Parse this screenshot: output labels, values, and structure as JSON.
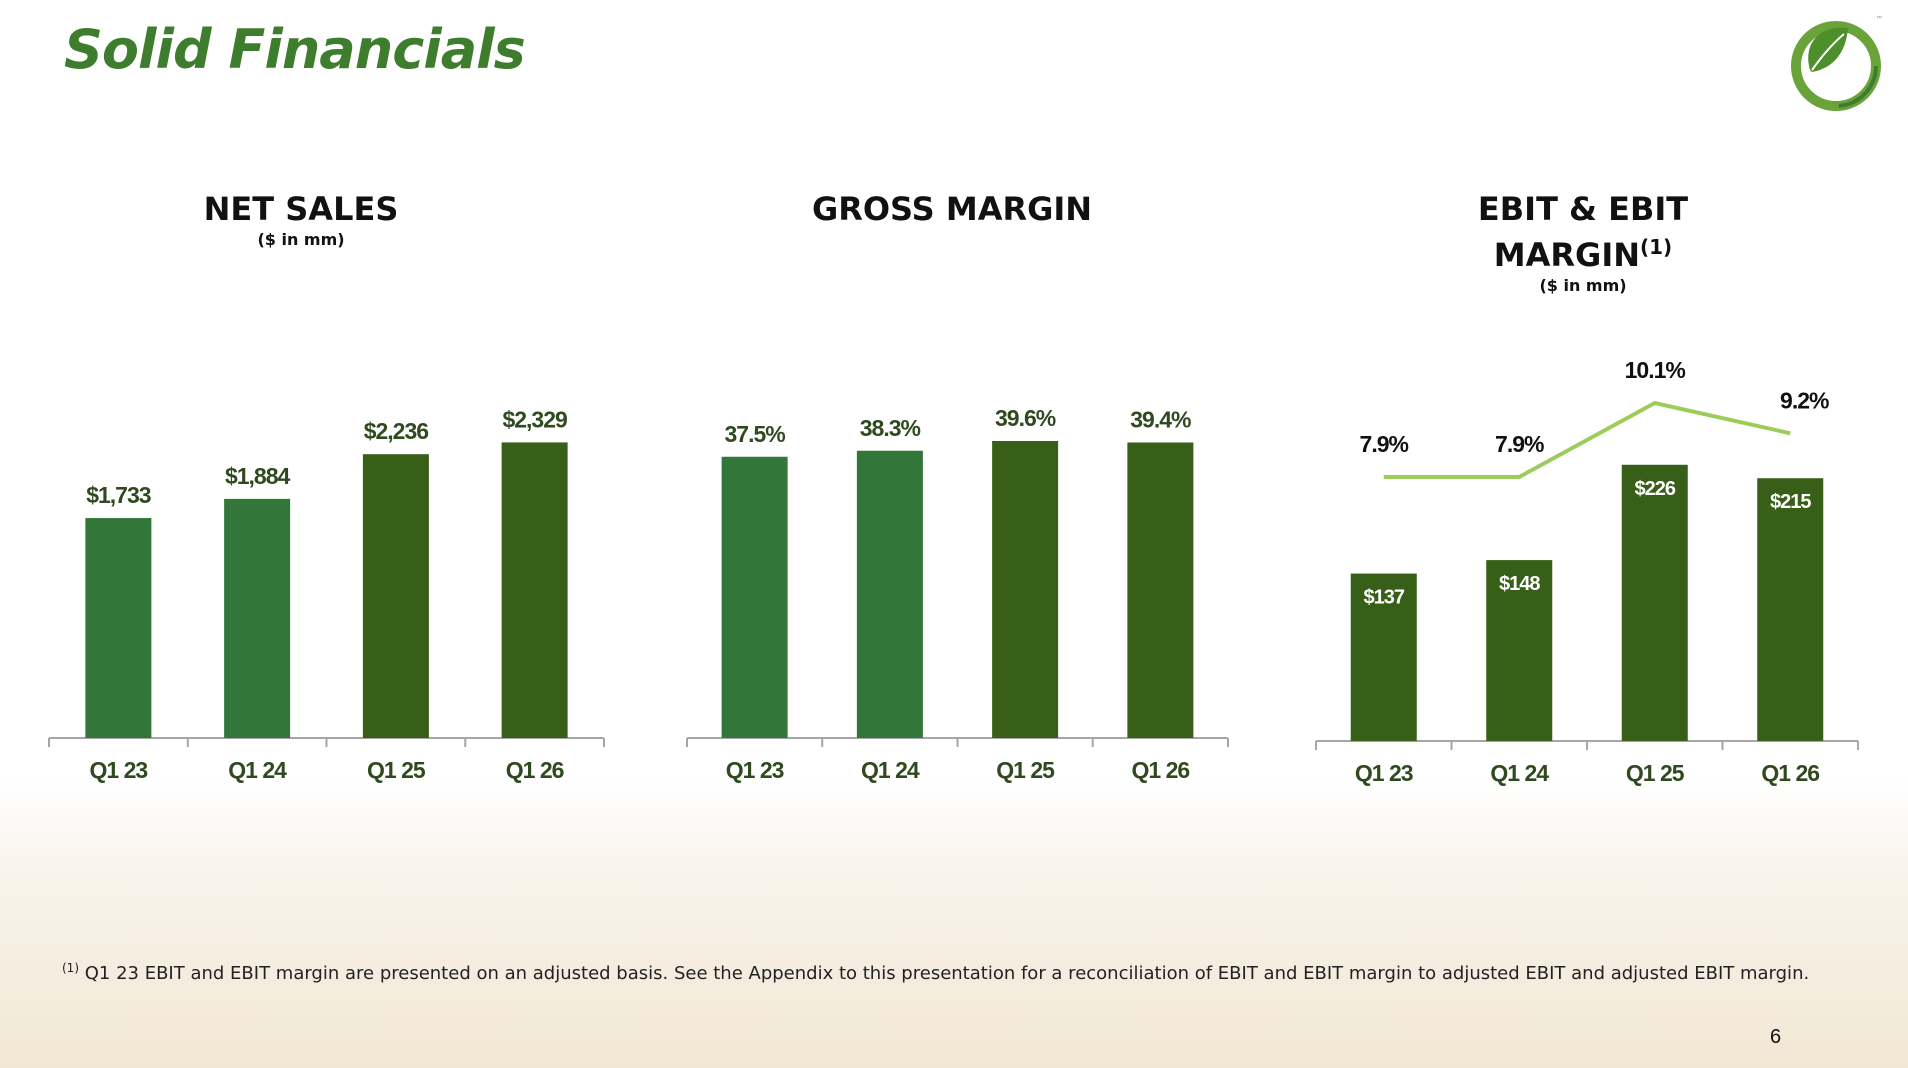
{
  "slide": {
    "title": "Solid Financials",
    "footnote_marker": "(1)",
    "footnote": "Q1 23 EBIT and EBIT margin are presented on an adjusted basis. See the Appendix to this presentation for a reconciliation of EBIT and EBIT margin to adjusted EBIT and adjusted EBIT margin.",
    "page_number": "6"
  },
  "colors": {
    "bar_light": "#32763a",
    "bar_dark": "#375f18",
    "line": "#9ccc5a",
    "label_dark": "#2f4a1f",
    "title_green": "#3f7d2e"
  },
  "chart_data": [
    {
      "type": "bar",
      "title": "NET SALES",
      "subtitle": "($ in mm)",
      "categories": [
        "Q1 23",
        "Q1 24",
        "Q1 25",
        "Q1 26"
      ],
      "values": [
        1733,
        1884,
        2236,
        2329
      ],
      "value_labels": [
        "$1,733",
        "$1,884",
        "$2,236",
        "$2,329"
      ],
      "bar_colors": [
        "#32763a",
        "#32763a",
        "#375f18",
        "#375f18"
      ],
      "ylim": [
        0,
        2600
      ]
    },
    {
      "type": "bar",
      "title": "GROSS MARGIN",
      "categories": [
        "Q1 23",
        "Q1 24",
        "Q1 25",
        "Q1 26"
      ],
      "values": [
        37.5,
        38.3,
        39.6,
        39.4
      ],
      "value_labels": [
        "37.5%",
        "38.3%",
        "39.6%",
        "39.4%"
      ],
      "bar_colors": [
        "#32763a",
        "#32763a",
        "#375f18",
        "#375f18"
      ],
      "ylim": [
        0,
        44
      ]
    },
    {
      "type": "bar",
      "title": "EBIT & EBIT MARGIN",
      "title_marker": "(1)",
      "subtitle": "($ in mm)",
      "categories": [
        "Q1 23",
        "Q1 24",
        "Q1 25",
        "Q1 26"
      ],
      "series": [
        {
          "type": "bar",
          "values": [
            137,
            148,
            226,
            215
          ],
          "value_labels": [
            "$137",
            "$148",
            "$226",
            "$215"
          ],
          "ylim": [
            0,
            270
          ]
        },
        {
          "type": "line",
          "values": [
            7.9,
            7.9,
            10.1,
            9.2
          ],
          "value_labels": [
            "7.9%",
            "7.9%",
            "10.1%",
            "9.2%"
          ]
        }
      ]
    }
  ]
}
